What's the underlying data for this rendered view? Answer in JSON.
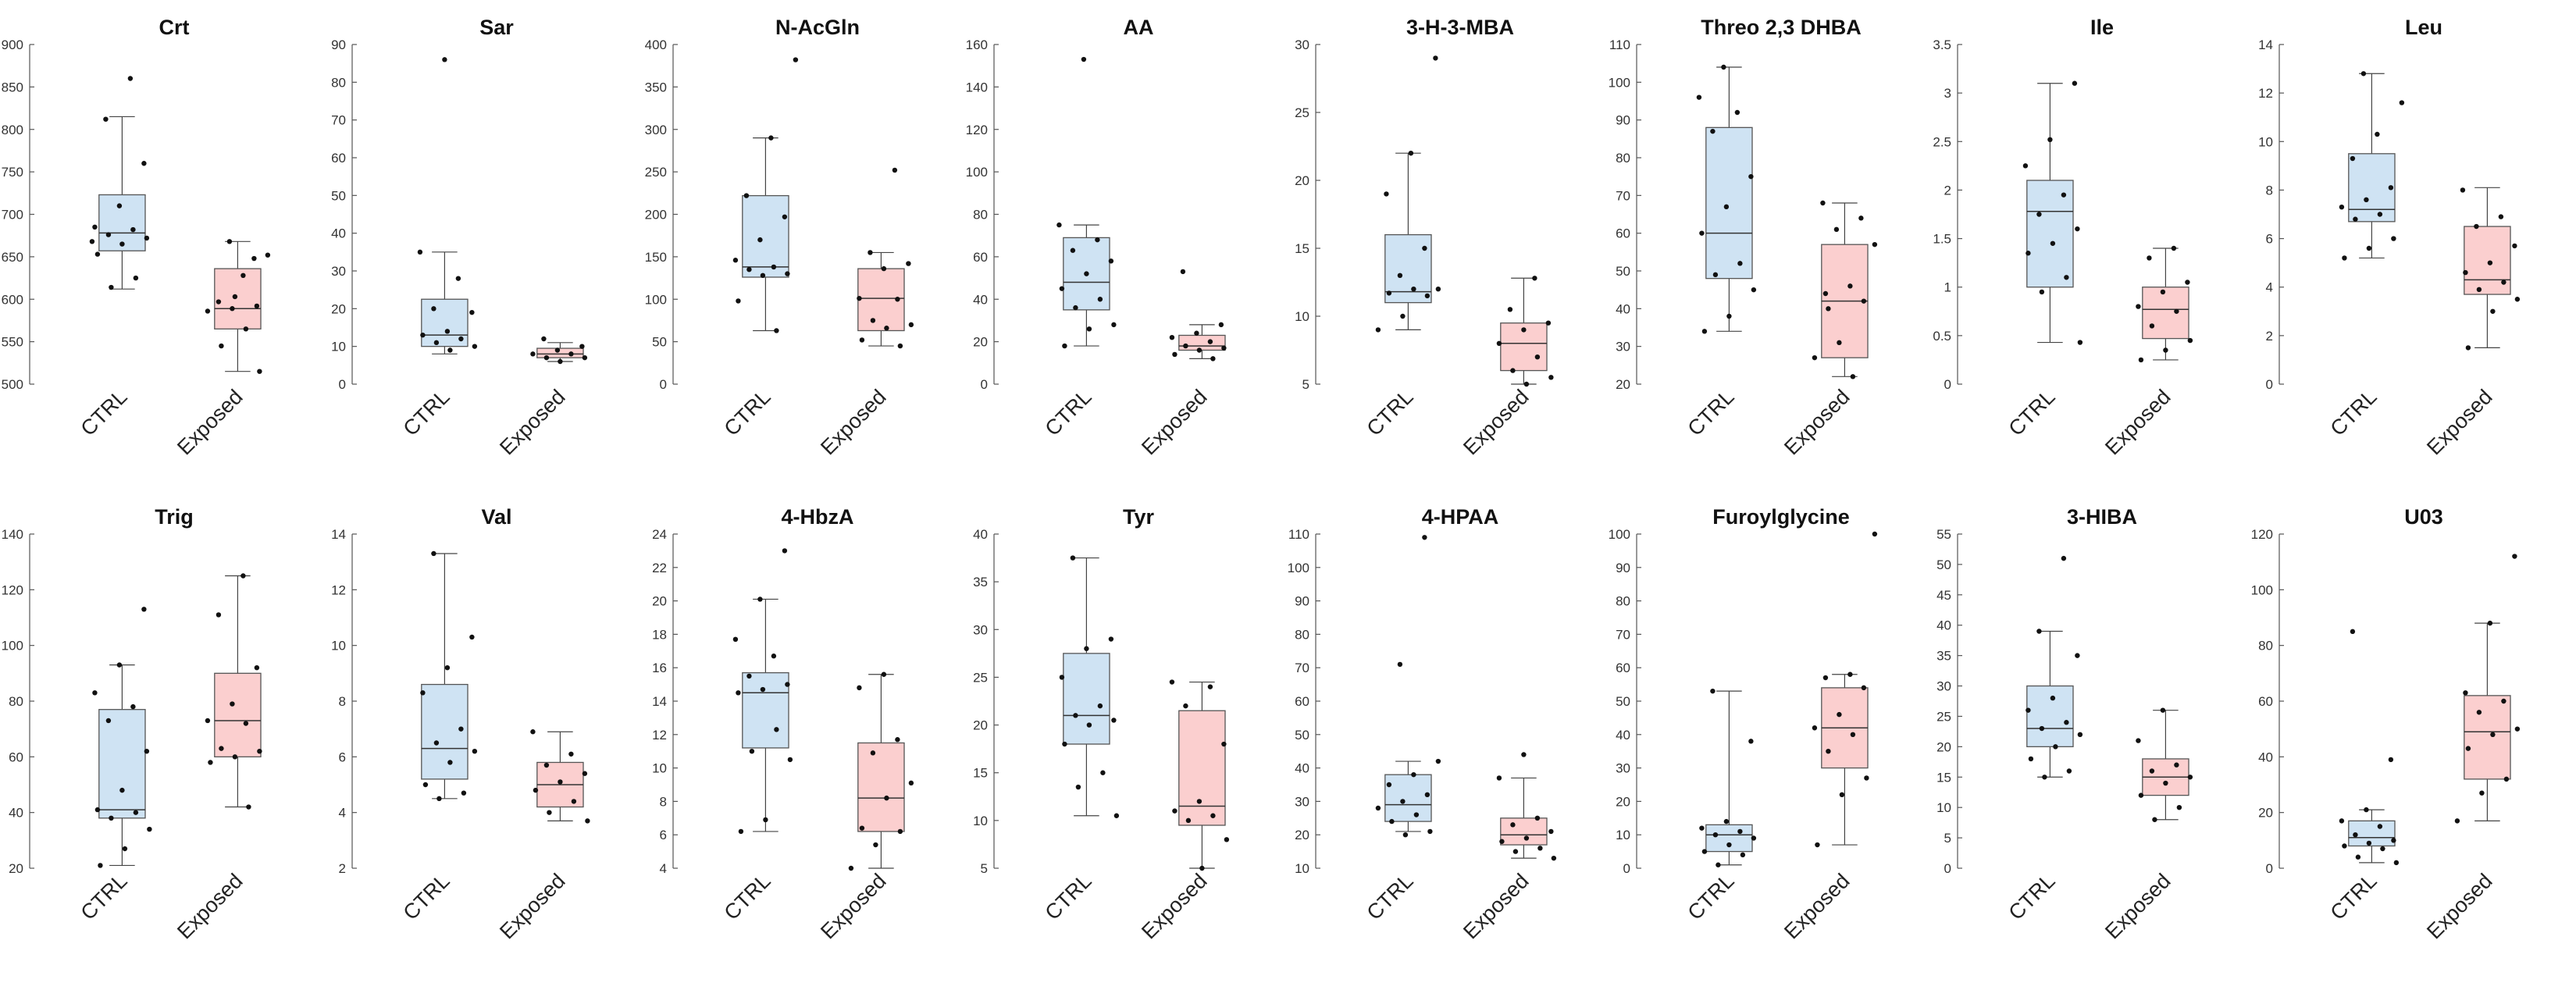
{
  "colors": {
    "ctrl": "#cfe3f3",
    "exposed": "#fbcfcf",
    "edge": "#555555"
  },
  "chart_data": [
    {
      "type": "box",
      "title": "Crt",
      "categories": [
        "CTRL",
        "Exposed"
      ],
      "ylim": [
        500,
        900
      ],
      "yticks": [
        500,
        550,
        600,
        650,
        700,
        750,
        800,
        850,
        900
      ],
      "series": [
        {
          "name": "CTRL",
          "box": {
            "min": 612,
            "q1": 657,
            "median": 678,
            "q3": 723,
            "max": 815
          },
          "points": [
            668,
            860,
            812,
            760,
            710,
            685,
            682,
            676,
            672,
            665,
            653,
            625,
            614
          ]
        },
        {
          "name": "Exposed",
          "box": {
            "min": 515,
            "q1": 565,
            "median": 589,
            "q3": 636,
            "max": 668
          },
          "points": [
            648,
            668,
            652,
            628,
            597,
            592,
            589,
            586,
            565,
            545,
            515,
            603
          ]
        }
      ]
    },
    {
      "type": "box",
      "title": "Sar",
      "categories": [
        "CTRL",
        "Exposed"
      ],
      "ylim": [
        0,
        90
      ],
      "yticks": [
        0,
        10,
        20,
        30,
        40,
        50,
        60,
        70,
        80,
        90
      ],
      "series": [
        {
          "name": "CTRL",
          "box": {
            "min": 8,
            "q1": 10,
            "median": 13,
            "q3": 22.5,
            "max": 35
          },
          "points": [
            86,
            35,
            28,
            20,
            19,
            14,
            13,
            12,
            11,
            10,
            9
          ]
        },
        {
          "name": "Exposed",
          "box": {
            "min": 6,
            "q1": 7,
            "median": 8,
            "q3": 9.5,
            "max": 11
          },
          "points": [
            12,
            10,
            9,
            8,
            8,
            7,
            7,
            6
          ]
        }
      ]
    },
    {
      "type": "box",
      "title": "N-AcGln",
      "categories": [
        "CTRL",
        "Exposed"
      ],
      "ylim": [
        0,
        400
      ],
      "yticks": [
        0,
        50,
        100,
        150,
        200,
        250,
        300,
        350,
        400
      ],
      "series": [
        {
          "name": "CTRL",
          "box": {
            "min": 63,
            "q1": 126,
            "median": 138,
            "q3": 222,
            "max": 290
          },
          "points": [
            382,
            290,
            222,
            197,
            170,
            146,
            138,
            135,
            130,
            128,
            98,
            63
          ]
        },
        {
          "name": "Exposed",
          "box": {
            "min": 45,
            "q1": 63,
            "median": 101,
            "q3": 136,
            "max": 155
          },
          "points": [
            252,
            155,
            142,
            136,
            101,
            100,
            75,
            70,
            66,
            52,
            45
          ]
        }
      ]
    },
    {
      "type": "box",
      "title": "AA",
      "categories": [
        "CTRL",
        "Exposed"
      ],
      "ylim": [
        0,
        160
      ],
      "yticks": [
        0,
        20,
        40,
        60,
        80,
        100,
        120,
        140,
        160
      ],
      "series": [
        {
          "name": "CTRL",
          "box": {
            "min": 18,
            "q1": 35,
            "median": 48,
            "q3": 69,
            "max": 75
          },
          "points": [
            153,
            75,
            68,
            63,
            58,
            52,
            45,
            40,
            36,
            28,
            26,
            18
          ]
        },
        {
          "name": "Exposed",
          "box": {
            "min": 12,
            "q1": 16,
            "median": 18,
            "q3": 23,
            "max": 28
          },
          "points": [
            53,
            28,
            24,
            22,
            20,
            18,
            17,
            16,
            14,
            12
          ]
        }
      ]
    },
    {
      "type": "box",
      "title": "3-H-3-MBA",
      "categories": [
        "CTRL",
        "Exposed"
      ],
      "ylim": [
        5,
        30
      ],
      "yticks": [
        5,
        10,
        15,
        20,
        25,
        30
      ],
      "series": [
        {
          "name": "CTRL",
          "box": {
            "min": 9,
            "q1": 11,
            "median": 11.8,
            "q3": 16,
            "max": 22
          },
          "points": [
            29,
            22,
            19,
            15,
            13,
            12,
            12,
            11.7,
            11.5,
            10,
            9
          ]
        },
        {
          "name": "Exposed",
          "box": {
            "min": 5,
            "q1": 6,
            "median": 8,
            "q3": 9.5,
            "max": 12.8
          },
          "points": [
            12.8,
            10.5,
            9.5,
            9,
            8,
            7,
            6,
            5.5,
            5
          ]
        }
      ]
    },
    {
      "type": "box",
      "title": "Threo 2,3 DHBA",
      "categories": [
        "CTRL",
        "Exposed"
      ],
      "ylim": [
        20,
        110
      ],
      "yticks": [
        20,
        30,
        40,
        50,
        60,
        70,
        80,
        90,
        100,
        110
      ],
      "series": [
        {
          "name": "CTRL",
          "box": {
            "min": 34,
            "q1": 48,
            "median": 60,
            "q3": 88,
            "max": 104
          },
          "points": [
            104,
            96,
            92,
            87,
            75,
            67,
            60,
            52,
            49,
            45,
            38,
            34
          ]
        },
        {
          "name": "Exposed",
          "box": {
            "min": 22,
            "q1": 27,
            "median": 42,
            "q3": 57,
            "max": 68
          },
          "points": [
            68,
            64,
            61,
            57,
            46,
            44,
            42,
            31,
            27,
            22,
            40
          ]
        }
      ]
    },
    {
      "type": "box",
      "title": "Ile",
      "categories": [
        "CTRL",
        "Exposed"
      ],
      "ylim": [
        0,
        3.5
      ],
      "yticks": [
        0,
        0.5,
        1,
        1.5,
        2,
        2.5,
        3,
        3.5
      ],
      "series": [
        {
          "name": "CTRL",
          "box": {
            "min": 0.43,
            "q1": 1.0,
            "median": 1.78,
            "q3": 2.1,
            "max": 3.1
          },
          "points": [
            3.1,
            2.52,
            2.25,
            1.95,
            1.75,
            1.6,
            1.45,
            1.35,
            1.1,
            0.95,
            0.43
          ]
        },
        {
          "name": "Exposed",
          "box": {
            "min": 0.25,
            "q1": 0.47,
            "median": 0.77,
            "q3": 1.0,
            "max": 1.4
          },
          "points": [
            1.4,
            1.3,
            1.05,
            0.95,
            0.8,
            0.75,
            0.6,
            0.45,
            0.35,
            0.25
          ]
        }
      ]
    },
    {
      "type": "box",
      "title": "Leu",
      "categories": [
        "CTRL",
        "Exposed"
      ],
      "ylim": [
        0,
        14
      ],
      "yticks": [
        0,
        2,
        4,
        6,
        8,
        10,
        12,
        14
      ],
      "series": [
        {
          "name": "CTRL",
          "box": {
            "min": 5.2,
            "q1": 6.7,
            "median": 7.2,
            "q3": 9.5,
            "max": 12.8
          },
          "points": [
            12.8,
            11.6,
            10.3,
            9.3,
            8.1,
            7.6,
            7.3,
            7.0,
            6.8,
            6.0,
            5.6,
            5.2
          ]
        },
        {
          "name": "Exposed",
          "box": {
            "min": 1.5,
            "q1": 3.7,
            "median": 4.3,
            "q3": 6.5,
            "max": 8.1
          },
          "points": [
            8.0,
            6.9,
            6.5,
            5.7,
            5.0,
            4.6,
            4.2,
            3.9,
            3.5,
            3.0,
            1.5
          ]
        }
      ]
    },
    {
      "type": "box",
      "title": "Trig",
      "categories": [
        "CTRL",
        "Exposed"
      ],
      "ylim": [
        20,
        140
      ],
      "yticks": [
        20,
        40,
        60,
        80,
        100,
        120,
        140
      ],
      "series": [
        {
          "name": "CTRL",
          "box": {
            "min": 21,
            "q1": 38,
            "median": 41,
            "q3": 77,
            "max": 93
          },
          "points": [
            113,
            93,
            83,
            78,
            73,
            62,
            48,
            41,
            40,
            38,
            34,
            27,
            21
          ]
        },
        {
          "name": "Exposed",
          "box": {
            "min": 42,
            "q1": 60,
            "median": 73,
            "q3": 90,
            "max": 125
          },
          "points": [
            125,
            111,
            92,
            79,
            73,
            72,
            63,
            62,
            60,
            58,
            42
          ]
        }
      ]
    },
    {
      "type": "box",
      "title": "Val",
      "categories": [
        "CTRL",
        "Exposed"
      ],
      "ylim": [
        2,
        14
      ],
      "yticks": [
        2,
        4,
        6,
        8,
        10,
        12,
        14
      ],
      "series": [
        {
          "name": "CTRL",
          "box": {
            "min": 4.5,
            "q1": 5.2,
            "median": 6.3,
            "q3": 8.6,
            "max": 13.3
          },
          "points": [
            13.3,
            10.3,
            9.2,
            8.3,
            7.0,
            6.5,
            6.2,
            5.8,
            5.0,
            4.7,
            4.5
          ]
        },
        {
          "name": "Exposed",
          "box": {
            "min": 3.7,
            "q1": 4.2,
            "median": 5.0,
            "q3": 5.8,
            "max": 6.9
          },
          "points": [
            6.9,
            6.1,
            5.7,
            5.4,
            5.1,
            4.8,
            4.4,
            4.0,
            3.7
          ]
        }
      ]
    },
    {
      "type": "box",
      "title": "4-HbzA",
      "categories": [
        "CTRL",
        "Exposed"
      ],
      "ylim": [
        4,
        24
      ],
      "yticks": [
        4,
        6,
        8,
        10,
        12,
        14,
        16,
        18,
        20,
        22,
        24
      ],
      "series": [
        {
          "name": "CTRL",
          "box": {
            "min": 6.2,
            "q1": 11.2,
            "median": 14.5,
            "q3": 15.7,
            "max": 20.1
          },
          "points": [
            23.0,
            20.1,
            17.7,
            16.7,
            15.5,
            15.0,
            14.7,
            14.5,
            12.3,
            11.0,
            10.5,
            6.9,
            6.2
          ]
        },
        {
          "name": "Exposed",
          "box": {
            "min": 4.0,
            "q1": 6.2,
            "median": 8.2,
            "q3": 11.5,
            "max": 15.6
          },
          "points": [
            15.6,
            14.8,
            11.7,
            10.9,
            9.1,
            8.2,
            6.4,
            6.2,
            5.4,
            4.0
          ]
        }
      ]
    },
    {
      "type": "box",
      "title": "Tyr",
      "categories": [
        "CTRL",
        "Exposed"
      ],
      "ylim": [
        5,
        40
      ],
      "yticks": [
        5,
        10,
        15,
        20,
        25,
        30,
        35,
        40
      ],
      "series": [
        {
          "name": "CTRL",
          "box": {
            "min": 10.5,
            "q1": 18,
            "median": 21,
            "q3": 27.5,
            "max": 37.5
          },
          "points": [
            37.5,
            29,
            28,
            25,
            22,
            21,
            20.5,
            20,
            18,
            15,
            13.5,
            10.5
          ]
        },
        {
          "name": "Exposed",
          "box": {
            "min": 5,
            "q1": 9.5,
            "median": 11.5,
            "q3": 21.5,
            "max": 24.5
          },
          "points": [
            24.5,
            24,
            22,
            18,
            12,
            11,
            10.5,
            10,
            8,
            5
          ]
        }
      ]
    },
    {
      "type": "box",
      "title": "4-HPAA",
      "categories": [
        "CTRL",
        "Exposed"
      ],
      "ylim": [
        10,
        110
      ],
      "yticks": [
        10,
        20,
        30,
        40,
        50,
        60,
        70,
        80,
        90,
        100,
        110
      ],
      "series": [
        {
          "name": "CTRL",
          "box": {
            "min": 21,
            "q1": 24,
            "median": 29,
            "q3": 38,
            "max": 42
          },
          "points": [
            109,
            71,
            42,
            38,
            35,
            32,
            30,
            28,
            26,
            24,
            21,
            20
          ]
        },
        {
          "name": "Exposed",
          "box": {
            "min": 13,
            "q1": 17,
            "median": 20,
            "q3": 25,
            "max": 37
          },
          "points": [
            44,
            37,
            25,
            23,
            21,
            19,
            18,
            16,
            15,
            13
          ]
        }
      ]
    },
    {
      "type": "box",
      "title": "Furoylglycine",
      "categories": [
        "CTRL",
        "Exposed"
      ],
      "ylim": [
        0,
        100
      ],
      "yticks": [
        0,
        10,
        20,
        30,
        40,
        50,
        60,
        70,
        80,
        90,
        100
      ],
      "series": [
        {
          "name": "CTRL",
          "box": {
            "min": 1,
            "q1": 5,
            "median": 10,
            "q3": 13,
            "max": 53
          },
          "points": [
            53,
            38,
            14,
            12,
            11,
            10,
            9,
            7,
            5,
            4,
            1
          ]
        },
        {
          "name": "Exposed",
          "box": {
            "min": 7,
            "q1": 30,
            "median": 42,
            "q3": 54,
            "max": 58
          },
          "points": [
            100,
            58,
            57,
            54,
            46,
            42,
            40,
            35,
            27,
            22,
            7
          ]
        }
      ]
    },
    {
      "type": "box",
      "title": "3-HIBA",
      "categories": [
        "CTRL",
        "Exposed"
      ],
      "ylim": [
        0,
        55
      ],
      "yticks": [
        0,
        5,
        10,
        15,
        20,
        25,
        30,
        35,
        40,
        45,
        50,
        55
      ],
      "series": [
        {
          "name": "CTRL",
          "box": {
            "min": 15,
            "q1": 20,
            "median": 23,
            "q3": 30,
            "max": 39
          },
          "points": [
            51,
            39,
            35,
            28,
            26,
            24,
            23,
            22,
            20,
            18,
            16,
            15
          ]
        },
        {
          "name": "Exposed",
          "box": {
            "min": 8,
            "q1": 12,
            "median": 15,
            "q3": 18,
            "max": 26
          },
          "points": [
            26,
            21,
            17,
            16,
            15,
            14,
            12,
            10,
            8
          ]
        }
      ]
    },
    {
      "type": "box",
      "title": "U03",
      "categories": [
        "CTRL",
        "Exposed"
      ],
      "ylim": [
        0,
        120
      ],
      "yticks": [
        0,
        20,
        40,
        60,
        80,
        100,
        120
      ],
      "series": [
        {
          "name": "CTRL",
          "box": {
            "min": 2,
            "q1": 8,
            "median": 11,
            "q3": 17,
            "max": 21
          },
          "points": [
            85,
            39,
            21,
            17,
            15,
            12,
            10,
            9,
            8,
            7,
            4,
            2
          ]
        },
        {
          "name": "Exposed",
          "box": {
            "min": 17,
            "q1": 32,
            "median": 49,
            "q3": 62,
            "max": 88
          },
          "points": [
            112,
            88,
            63,
            60,
            56,
            50,
            48,
            43,
            32,
            27,
            17
          ]
        }
      ]
    }
  ]
}
